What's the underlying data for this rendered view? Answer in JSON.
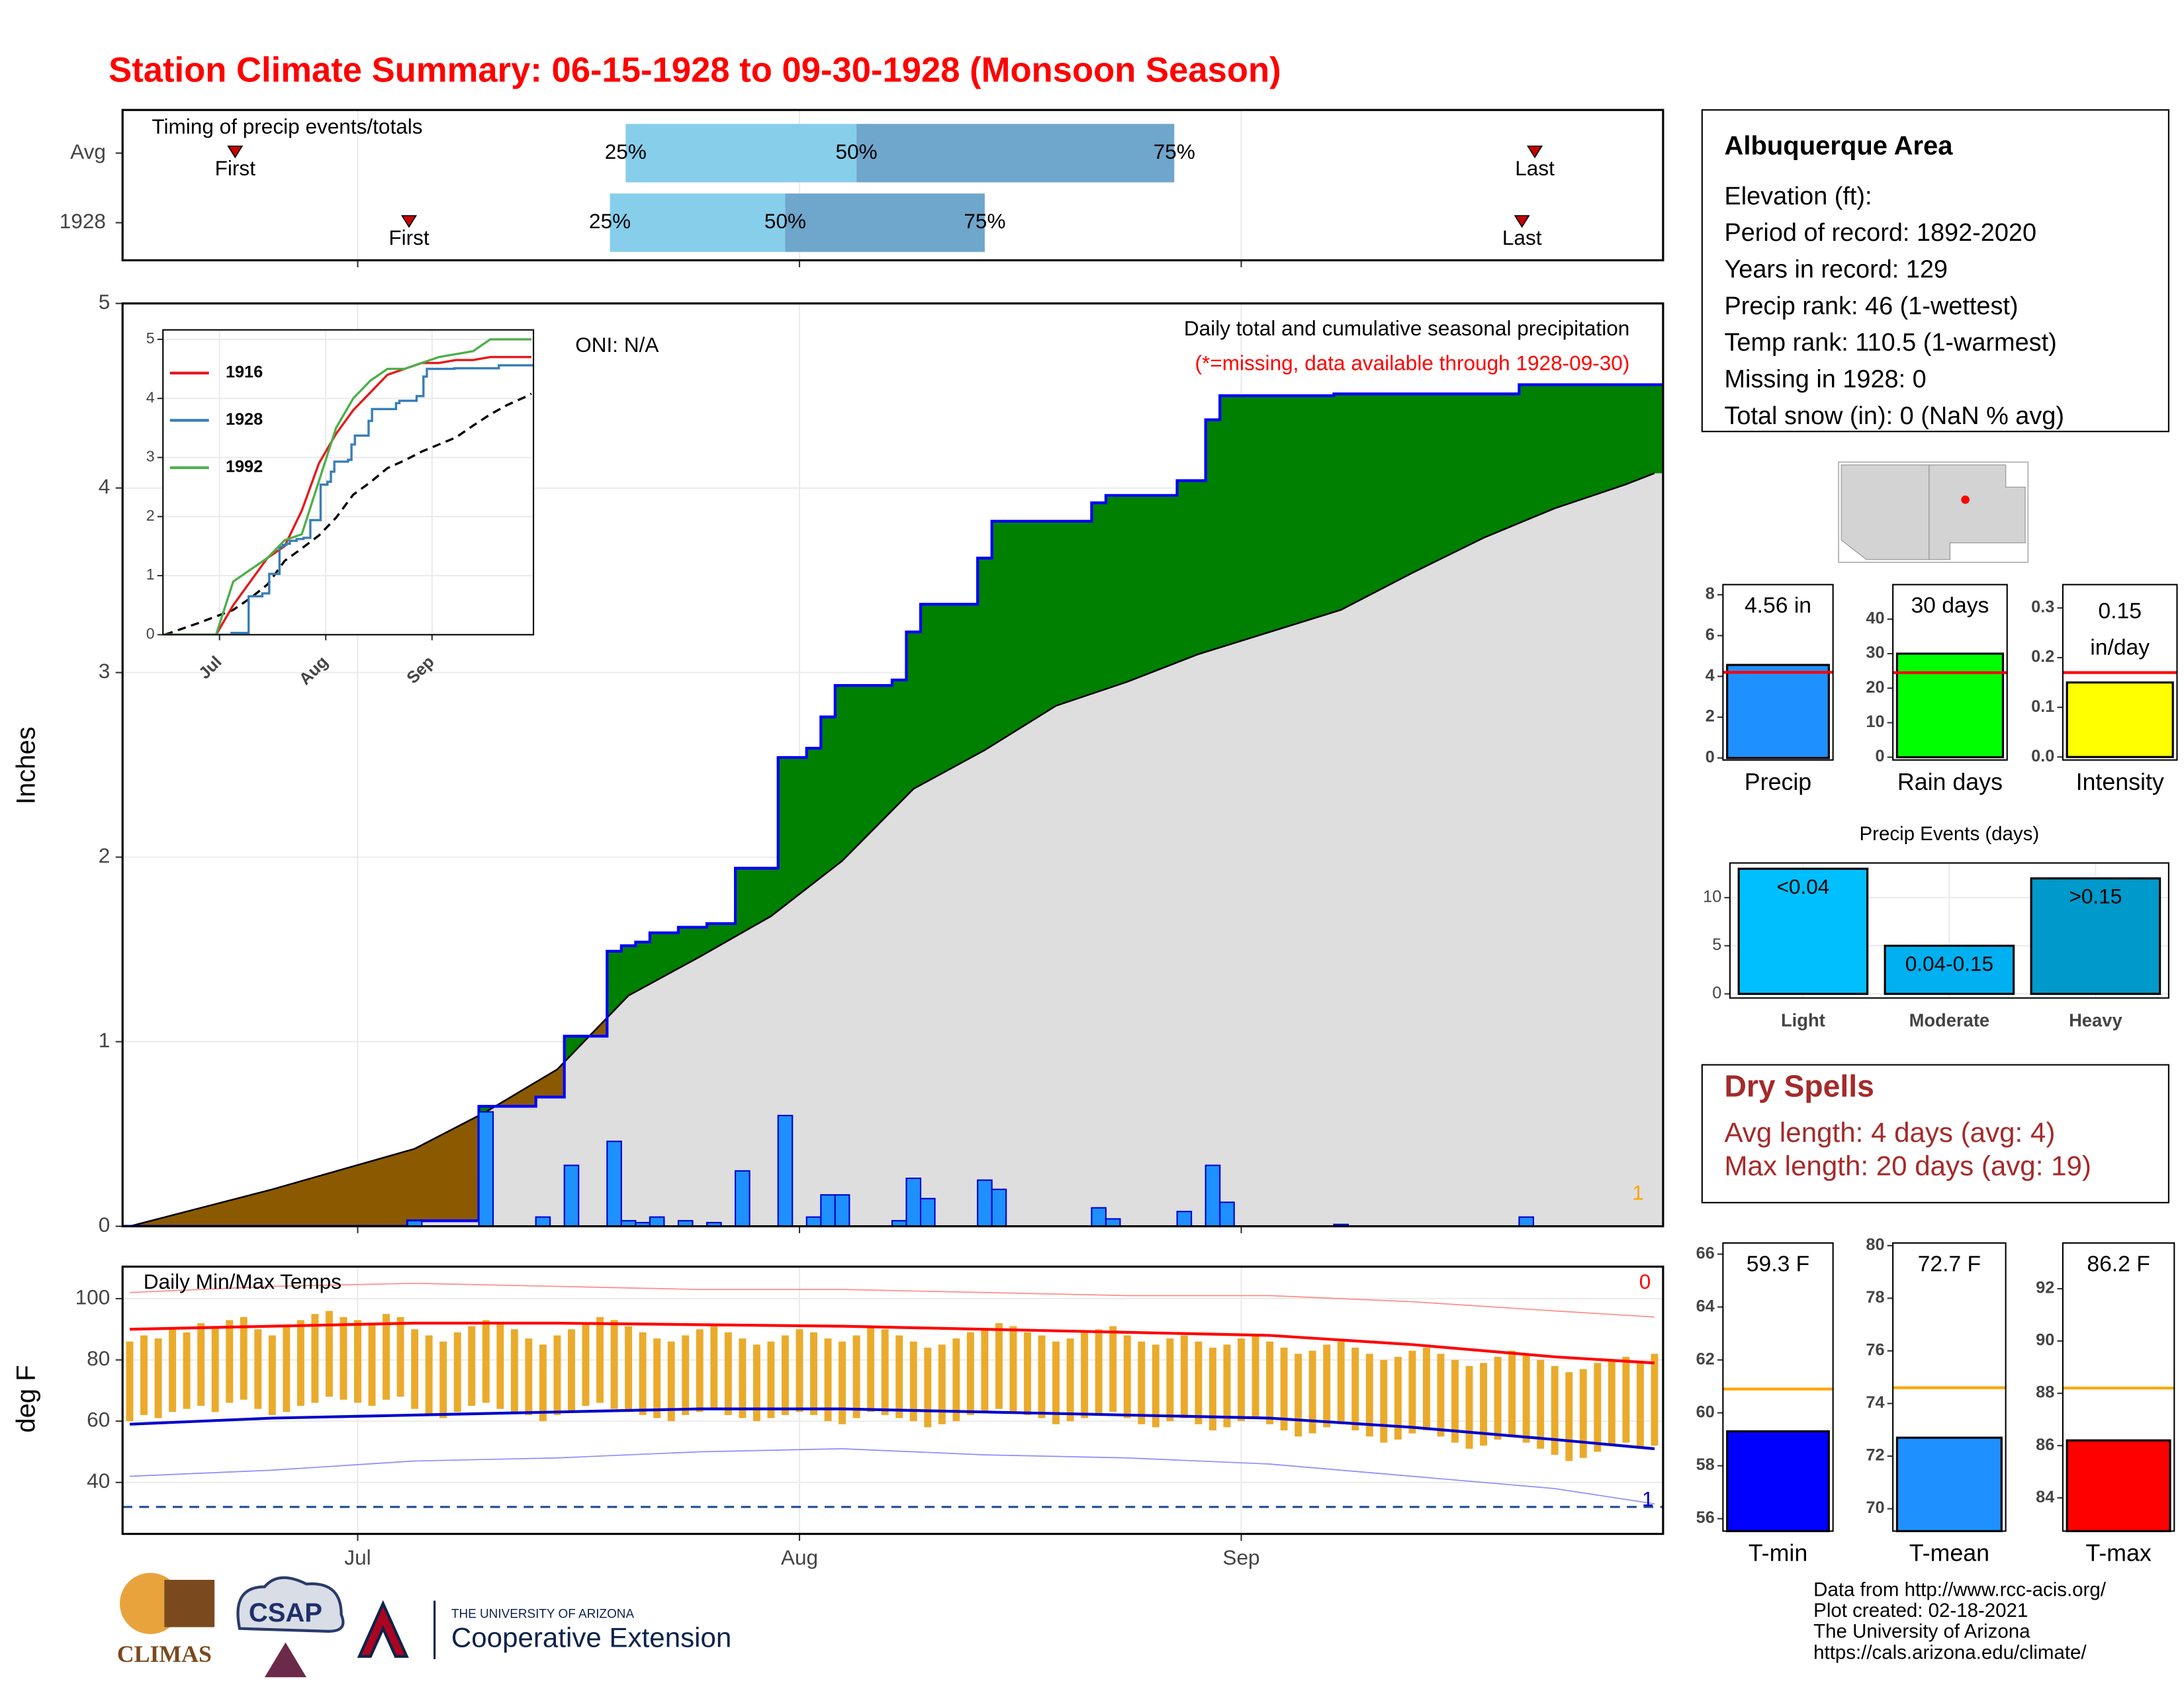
{
  "title": "Station Climate Summary: 06-15-1928 to 09-30-1928 (Monsoon Season)",
  "station": {
    "name": "Albuquerque Area",
    "lines": [
      "Elevation (ft):",
      "Period of record: 1892-2020",
      "Years in record: 129",
      "Precip rank: 46 (1-wettest)",
      "Temp rank: 110.5 (1-warmest)",
      "Missing in 1928: 0",
      "Total snow (in): 0 (NaN % avg)"
    ]
  },
  "dry_spells": {
    "title": "Dry Spells",
    "lines": [
      "Avg length: 4 days (avg: 4)",
      "Max length: 20 days (avg: 19)"
    ]
  },
  "footer": [
    "Data from http://www.rcc-acis.org/",
    "Plot created: 02-18-2021",
    "The University of Arizona",
    "https://cals.arizona.edu/climate/"
  ],
  "logos": {
    "climas": "CLIMAS",
    "csap": "CSAP",
    "university": "THE UNIVERSITY OF ARIZONA",
    "extension": "Cooperative Extension"
  },
  "chart_data": [
    {
      "type": "timing",
      "title": "Timing of precip events/totals",
      "xlim": [
        -0.5,
        107.6
      ],
      "xticks": [
        16,
        47,
        78
      ],
      "colors": [
        "#87ceeb",
        "#6fa6cc"
      ],
      "marker_color": "#cc0000",
      "labels": {
        "first": "First",
        "p25": "25%",
        "p50": "50%",
        "p75": "75%",
        "last": "Last"
      },
      "rows": [
        {
          "name": "Avg",
          "first": 7.4,
          "p25": 34.8,
          "p50": 51,
          "p75": 73.3,
          "last": 98.6
        },
        {
          "name": "1928",
          "first": 19.6,
          "p25": 33.7,
          "p50": 46,
          "p75": 60,
          "last": 97.7
        }
      ]
    },
    {
      "type": "cumulative",
      "ylabel": "Inches",
      "ylim": [
        0,
        5
      ],
      "yticks": [
        0,
        1,
        2,
        3,
        4,
        5
      ],
      "xlim": [
        -0.5,
        107.6
      ],
      "xticks": [
        16,
        47,
        78
      ],
      "grid": true,
      "annotation": "ONI: N/A",
      "subtitle": "Daily total and cumulative seasonal precipitation",
      "note": "(*=missing, data available through 1928-09-30)",
      "record_count": 1,
      "daily_x": [
        20,
        25,
        29,
        31,
        34,
        35,
        36,
        37,
        39,
        41,
        43,
        46,
        48,
        49,
        50,
        54,
        55,
        56,
        60,
        61,
        68,
        69,
        74,
        76,
        77,
        85,
        98
      ],
      "daily": [
        0.03,
        0.62,
        0.05,
        0.33,
        0.46,
        0.03,
        0.02,
        0.05,
        0.03,
        0.02,
        0.3,
        0.6,
        0.05,
        0.17,
        0.17,
        0.03,
        0.26,
        0.15,
        0.25,
        0.2,
        0.1,
        0.04,
        0.08,
        0.33,
        0.13,
        0.01,
        0.05
      ],
      "avg_x": [
        0,
        5,
        10,
        15,
        20,
        25,
        30,
        35,
        40,
        45,
        50,
        55,
        60,
        65,
        70,
        75,
        80,
        85,
        90,
        95,
        100,
        105,
        107
      ],
      "avg_cumulative": [
        0,
        0.1,
        0.2,
        0.31,
        0.42,
        0.62,
        0.85,
        1.25,
        1.46,
        1.68,
        1.98,
        2.37,
        2.58,
        2.82,
        2.95,
        3.1,
        3.22,
        3.34,
        3.54,
        3.73,
        3.89,
        4.02,
        4.08
      ],
      "colors": {
        "bar": "#1e90ff",
        "cumulative": "#0000ff",
        "above": "#008000",
        "below": "#8b5a00",
        "avg_area": "#dedede"
      }
    },
    {
      "type": "inset",
      "ylim": [
        0,
        5.16
      ],
      "yticks": [
        0,
        1,
        2,
        3,
        4,
        5
      ],
      "xlim": [
        -0.5,
        107.6
      ],
      "xticks": [
        {
          "value": 16,
          "label": "Jul"
        },
        {
          "value": 47,
          "label": "Aug"
        },
        {
          "value": 78,
          "label": "Sep"
        }
      ],
      "series": [
        {
          "name": "1916",
          "color": "#e41a1c",
          "x": [
            0,
            5,
            10,
            15,
            20,
            25,
            30,
            35,
            40,
            45,
            50,
            55,
            60,
            65,
            70,
            75,
            80,
            85,
            90,
            95,
            100,
            105,
            107
          ],
          "values": [
            0,
            0,
            0,
            0,
            0.5,
            0.9,
            1.3,
            1.5,
            2.1,
            2.9,
            3.4,
            3.8,
            4.1,
            4.4,
            4.5,
            4.6,
            4.6,
            4.65,
            4.65,
            4.7,
            4.7,
            4.7,
            4.7
          ]
        },
        {
          "name": "1928",
          "color": "#377eb8"
        },
        {
          "name": "1992",
          "color": "#4daf4a",
          "x": [
            0,
            5,
            10,
            15,
            20,
            25,
            30,
            35,
            40,
            45,
            50,
            55,
            60,
            65,
            70,
            75,
            80,
            85,
            90,
            95,
            100,
            105,
            107
          ],
          "values": [
            0,
            0,
            0,
            0,
            0.9,
            1.1,
            1.3,
            1.6,
            1.7,
            2.6,
            3.5,
            4.0,
            4.3,
            4.5,
            4.5,
            4.6,
            4.7,
            4.75,
            4.8,
            5.0,
            5.0,
            5.0,
            5.0
          ]
        }
      ]
    },
    {
      "type": "temps",
      "title": "Daily Min/Max Temps",
      "ylabel": "deg F",
      "ylim": [
        23.2,
        110.45
      ],
      "yticks": [
        40,
        60,
        80,
        100
      ],
      "xlim": [
        -0.5,
        107.6
      ],
      "xticks": [
        {
          "value": 16,
          "label": "Jul"
        },
        {
          "value": 47,
          "label": "Aug"
        },
        {
          "value": 78,
          "label": "Sep"
        }
      ],
      "freeze": 32,
      "record_high_count": 0,
      "record_low_count": 1,
      "x": [
        0,
        1,
        2,
        3,
        4,
        5,
        6,
        7,
        8,
        9,
        10,
        11,
        12,
        13,
        14,
        15,
        16,
        17,
        18,
        19,
        20,
        21,
        22,
        23,
        24,
        25,
        26,
        27,
        28,
        29,
        30,
        31,
        32,
        33,
        34,
        35,
        36,
        37,
        38,
        39,
        40,
        41,
        42,
        43,
        44,
        45,
        46,
        47,
        48,
        49,
        50,
        51,
        52,
        53,
        54,
        55,
        56,
        57,
        58,
        59,
        60,
        61,
        62,
        63,
        64,
        65,
        66,
        67,
        68,
        69,
        70,
        71,
        72,
        73,
        74,
        75,
        76,
        77,
        78,
        79,
        80,
        81,
        82,
        83,
        84,
        85,
        86,
        87,
        88,
        89,
        90,
        91,
        92,
        93,
        94,
        95,
        96,
        97,
        98,
        99,
        100,
        101,
        102,
        103,
        104,
        105,
        106,
        107
      ],
      "tmax": [
        86,
        88,
        87,
        90,
        89,
        92,
        91,
        93,
        94,
        90,
        88,
        91,
        93,
        95,
        96,
        94,
        93,
        92,
        95,
        94,
        90,
        88,
        86,
        89,
        91,
        93,
        92,
        90,
        87,
        85,
        88,
        90,
        92,
        94,
        93,
        91,
        89,
        87,
        86,
        88,
        90,
        91,
        89,
        87,
        85,
        86,
        88,
        90,
        89,
        87,
        86,
        88,
        91,
        90,
        88,
        86,
        84,
        85,
        87,
        89,
        90,
        92,
        91,
        89,
        88,
        86,
        87,
        89,
        90,
        91,
        88,
        86,
        85,
        87,
        88,
        86,
        84,
        85,
        87,
        88,
        86,
        84,
        82,
        83,
        85,
        86,
        84,
        82,
        80,
        81,
        83,
        84,
        82,
        80,
        78,
        79,
        81,
        83,
        82,
        80,
        78,
        76,
        77,
        79,
        80,
        81,
        79,
        82
      ],
      "tmin": [
        60,
        62,
        61,
        63,
        64,
        65,
        63,
        66,
        67,
        64,
        62,
        63,
        65,
        66,
        68,
        67,
        66,
        65,
        67,
        68,
        64,
        62,
        61,
        63,
        65,
        66,
        64,
        63,
        62,
        60,
        62,
        63,
        65,
        66,
        64,
        63,
        62,
        61,
        60,
        62,
        63,
        64,
        62,
        61,
        60,
        61,
        62,
        63,
        62,
        60,
        59,
        61,
        63,
        62,
        61,
        60,
        58,
        59,
        60,
        62,
        63,
        64,
        63,
        62,
        61,
        59,
        60,
        61,
        62,
        63,
        61,
        59,
        58,
        60,
        61,
        59,
        57,
        58,
        60,
        61,
        59,
        57,
        55,
        56,
        58,
        59,
        57,
        55,
        53,
        54,
        56,
        57,
        55,
        53,
        51,
        52,
        54,
        55,
        53,
        51,
        49,
        47,
        48,
        50,
        52,
        53,
        51,
        52
      ],
      "ref_x": [
        0,
        10,
        20,
        30,
        40,
        50,
        60,
        70,
        80,
        90,
        100,
        107
      ],
      "normal_max": [
        90,
        91,
        92,
        92,
        91.5,
        91,
        90,
        89,
        88,
        85,
        81,
        79
      ],
      "normal_min": [
        59,
        61,
        62,
        63,
        64,
        64,
        63,
        62,
        61,
        58,
        54,
        51
      ],
      "record_high": [
        102,
        104,
        105,
        104,
        103,
        103,
        102,
        101,
        101,
        99,
        96,
        94
      ],
      "record_low": [
        42,
        44,
        47,
        48,
        50,
        51,
        49,
        48,
        46,
        42,
        38,
        33
      ],
      "colors": {
        "bar": "#eaab2c",
        "normal_max": "#ff0000",
        "normal_min": "#0000cd",
        "record_high": "#ff8c8c",
        "record_low": "#8c8cff",
        "freeze": "#1f4e8c"
      }
    },
    {
      "type": "summary_bar",
      "label": "Precip",
      "value": 4.56,
      "value_label": "4.56 in",
      "avg": 4.2,
      "color": "#1e90ff",
      "avg_color": "#ff0000",
      "ylim": [
        -0.1,
        8.5
      ],
      "yticks": [
        0,
        2,
        4,
        6,
        8
      ]
    },
    {
      "type": "summary_bar",
      "label": "Rain days",
      "value": 30,
      "value_label": "30 days",
      "avg": 24.5,
      "color": "#00ff00",
      "avg_color": "#ff0000",
      "ylim": [
        -0.8,
        50
      ],
      "yticks": [
        0,
        10,
        20,
        30,
        40
      ]
    },
    {
      "type": "summary_bar",
      "label": "Intensity",
      "value": 0.15,
      "value_label": "0.15 in/day",
      "avg": 0.17,
      "color": "#ffff00",
      "avg_color": "#ff0000",
      "ylim": [
        -0.006,
        0.347
      ],
      "yticks": [
        {
          "value": 0,
          "label": "0.0"
        },
        0.1,
        0.2,
        0.3
      ]
    },
    {
      "type": "bar",
      "title": "Precip Events (days)",
      "categories": [
        "Light",
        "Moderate",
        "Heavy"
      ],
      "values": [
        13,
        5,
        12
      ],
      "ranges": [
        "<0.04",
        "0.04-0.15",
        ">0.15"
      ],
      "colors": [
        "#00bfff",
        "#00b0f0",
        "#0099cc"
      ],
      "ylim": [
        -0.43,
        13.6
      ],
      "yticks": [
        0,
        5,
        10
      ],
      "grid": true
    },
    {
      "type": "summary_bar",
      "label": "T-min",
      "value": 59.3,
      "value_label": "59.3 F",
      "avg": 60.9,
      "color": "#0000ff",
      "avg_color": "#ffa500",
      "ylim": [
        55.53,
        66.42
      ],
      "yticks": [
        56,
        58,
        60,
        62,
        64,
        66
      ]
    },
    {
      "type": "summary_bar",
      "label": "T-mean",
      "value": 72.7,
      "value_label": "72.7 F",
      "avg": 74.6,
      "color": "#1e90ff",
      "avg_color": "#ffa500",
      "ylim": [
        69.15,
        80.1
      ],
      "yticks": [
        70,
        72,
        74,
        76,
        78,
        80
      ]
    },
    {
      "type": "summary_bar",
      "label": "T-max",
      "value": 86.2,
      "value_label": "86.2 F",
      "avg": 88.2,
      "color": "#ff0000",
      "avg_color": "#ffa500",
      "ylim": [
        82.73,
        93.75
      ],
      "yticks": [
        84,
        86,
        88,
        90,
        92
      ]
    }
  ]
}
